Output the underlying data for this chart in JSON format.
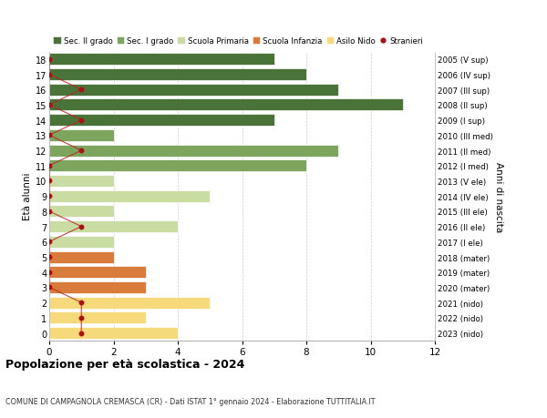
{
  "ages": [
    18,
    17,
    16,
    15,
    14,
    13,
    12,
    11,
    10,
    9,
    8,
    7,
    6,
    5,
    4,
    3,
    2,
    1,
    0
  ],
  "right_labels": [
    "2005 (V sup)",
    "2006 (IV sup)",
    "2007 (III sup)",
    "2008 (II sup)",
    "2009 (I sup)",
    "2010 (III med)",
    "2011 (II med)",
    "2012 (I med)",
    "2013 (V ele)",
    "2014 (IV ele)",
    "2015 (III ele)",
    "2016 (II ele)",
    "2017 (I ele)",
    "2018 (mater)",
    "2019 (mater)",
    "2020 (mater)",
    "2021 (nido)",
    "2022 (nido)",
    "2023 (nido)"
  ],
  "bar_values": [
    7,
    8,
    9,
    11,
    7,
    2,
    9,
    8,
    2,
    5,
    2,
    4,
    2,
    2,
    3,
    3,
    5,
    3,
    4
  ],
  "stranieri_x": [
    0,
    0,
    1,
    0,
    1,
    0,
    1,
    0,
    0,
    0,
    0,
    1,
    0,
    0,
    0,
    0,
    1,
    1,
    1
  ],
  "categories": {
    "sec2": {
      "ages": [
        18,
        17,
        16,
        15,
        14
      ],
      "color": "#4a7339"
    },
    "sec1": {
      "ages": [
        13,
        12,
        11
      ],
      "color": "#7da55e"
    },
    "primaria": {
      "ages": [
        10,
        9,
        8,
        7,
        6
      ],
      "color": "#c8dca4"
    },
    "infanzia": {
      "ages": [
        5,
        4,
        3
      ],
      "color": "#d97b3a"
    },
    "nido": {
      "ages": [
        2,
        1,
        0
      ],
      "color": "#f5d97a"
    }
  },
  "stranieri_color": "#aa1111",
  "stranieri_line_color": "#bb2222",
  "xlim": [
    0,
    12
  ],
  "ylim": [
    -0.5,
    18.5
  ],
  "xlabel_ticks": [
    0,
    2,
    4,
    6,
    8,
    10,
    12
  ],
  "bar_height": 0.78,
  "title": "Popolazione per età scolastica - 2024",
  "subtitle": "COMUNE DI CAMPAGNOLA CREMASCA (CR) - Dati ISTAT 1° gennaio 2024 - Elaborazione TUTTITALIA.IT",
  "ylabel": "Età alunni",
  "right_ylabel": "Anni di nascita",
  "legend_items": [
    {
      "label": "Sec. II grado",
      "color": "#4a7339",
      "type": "patch"
    },
    {
      "label": "Sec. I grado",
      "color": "#7da55e",
      "type": "patch"
    },
    {
      "label": "Scuola Primaria",
      "color": "#c8dca4",
      "type": "patch"
    },
    {
      "label": "Scuola Infanzia",
      "color": "#d97b3a",
      "type": "patch"
    },
    {
      "label": "Asilo Nido",
      "color": "#f5d97a",
      "type": "patch"
    },
    {
      "label": "Stranieri",
      "color": "#aa1111",
      "type": "circle"
    }
  ],
  "background_color": "#ffffff",
  "grid_color": "#cccccc"
}
